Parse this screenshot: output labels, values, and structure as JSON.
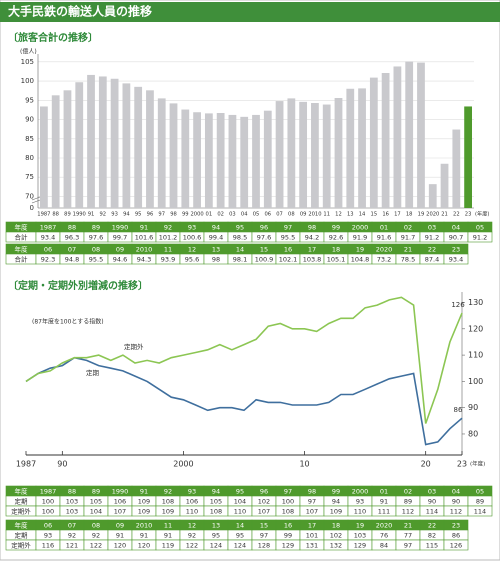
{
  "title": "大手民鉄の輸送人員の推移",
  "chart_data": [
    {
      "type": "bar",
      "title": "〔旅客合計の推移〕",
      "unit": "(億人)",
      "x_unit": "(年度)",
      "categories": [
        "1987",
        "88",
        "89",
        "1990",
        "91",
        "92",
        "93",
        "94",
        "95",
        "96",
        "97",
        "98",
        "99",
        "2000",
        "01",
        "02",
        "03",
        "04",
        "05",
        "06",
        "07",
        "08",
        "09",
        "2010",
        "11",
        "12",
        "13",
        "14",
        "15",
        "16",
        "17",
        "18",
        "19",
        "2020",
        "21",
        "22",
        "23"
      ],
      "values": [
        93.4,
        96.3,
        97.6,
        99.7,
        101.6,
        101.2,
        100.6,
        99.4,
        98.5,
        97.6,
        95.5,
        94.2,
        92.6,
        91.9,
        91.6,
        91.7,
        91.2,
        90.7,
        91.2,
        92.3,
        94.8,
        95.5,
        94.6,
        94.3,
        93.9,
        95.6,
        98.0,
        98.1,
        100.9,
        102.1,
        103.8,
        105.1,
        104.8,
        73.2,
        78.5,
        87.4,
        93.4
      ],
      "colors": [
        "#c9c9cd",
        "#c9c9cd",
        "#c9c9cd",
        "#c9c9cd",
        "#c9c9cd",
        "#c9c9cd",
        "#c9c9cd",
        "#c9c9cd",
        "#c9c9cd",
        "#c9c9cd",
        "#c9c9cd",
        "#c9c9cd",
        "#c9c9cd",
        "#c9c9cd",
        "#c9c9cd",
        "#c9c9cd",
        "#c9c9cd",
        "#c9c9cd",
        "#c9c9cd",
        "#c9c9cd",
        "#c9c9cd",
        "#c9c9cd",
        "#c9c9cd",
        "#c9c9cd",
        "#c9c9cd",
        "#c9c9cd",
        "#c9c9cd",
        "#c9c9cd",
        "#c9c9cd",
        "#c9c9cd",
        "#c9c9cd",
        "#c9c9cd",
        "#c9c9cd",
        "#c9c9cd",
        "#c9c9cd",
        "#c9c9cd",
        "#4f9a2c"
      ],
      "ylim": [
        67,
        106
      ],
      "yticks": [
        70,
        75,
        80,
        85,
        90,
        95,
        100,
        105
      ],
      "axis_break_tick": "0",
      "grid": true,
      "table_row_labels": [
        "年度",
        "合計"
      ]
    },
    {
      "type": "line",
      "title": "〔定期・定期外別増減の推移〕",
      "note": "(87年度を100とする指数)",
      "x_unit": "(年度)",
      "x": [
        1987,
        1988,
        1989,
        1990,
        1991,
        1992,
        1993,
        1994,
        1995,
        1996,
        1997,
        1998,
        1999,
        2000,
        2001,
        2002,
        2003,
        2004,
        2005,
        2006,
        2007,
        2008,
        2009,
        2010,
        2011,
        2012,
        2013,
        2014,
        2015,
        2016,
        2017,
        2018,
        2019,
        2020,
        2021,
        2022,
        2023
      ],
      "series": [
        {
          "name": "定期",
          "color": "#3f6f9e",
          "values": [
            100,
            103,
            105,
            106,
            109,
            108,
            106,
            105,
            104,
            102,
            100,
            97,
            94,
            93,
            91,
            89,
            90,
            90,
            89,
            93,
            92,
            92,
            91,
            91,
            91,
            92,
            95,
            95,
            97,
            99,
            101,
            102,
            103,
            76,
            77,
            82,
            86
          ]
        },
        {
          "name": "定期外",
          "color": "#8cc653",
          "values": [
            100,
            103,
            104,
            107,
            109,
            109,
            110,
            108,
            110,
            107,
            108,
            107,
            109,
            110,
            111,
            112,
            114,
            112,
            114,
            116,
            121,
            122,
            120,
            120,
            119,
            122,
            124,
            124,
            128,
            129,
            131,
            132,
            129,
            84,
            97,
            115,
            126
          ]
        }
      ],
      "xlim": [
        1987,
        2023
      ],
      "xticks": [
        {
          "value": 1987,
          "label": "1987"
        },
        {
          "value": 1990,
          "label": "90"
        },
        {
          "value": 2000,
          "label": "2000"
        },
        {
          "value": 2010,
          "label": "10"
        },
        {
          "value": 2020,
          "label": "20"
        },
        {
          "value": 2023,
          "label": "23"
        }
      ],
      "ylim": [
        72,
        134
      ],
      "yticks": [
        80,
        90,
        100,
        110,
        120,
        130
      ],
      "table_row_labels": [
        "年度",
        "定期",
        "定期外"
      ]
    }
  ]
}
